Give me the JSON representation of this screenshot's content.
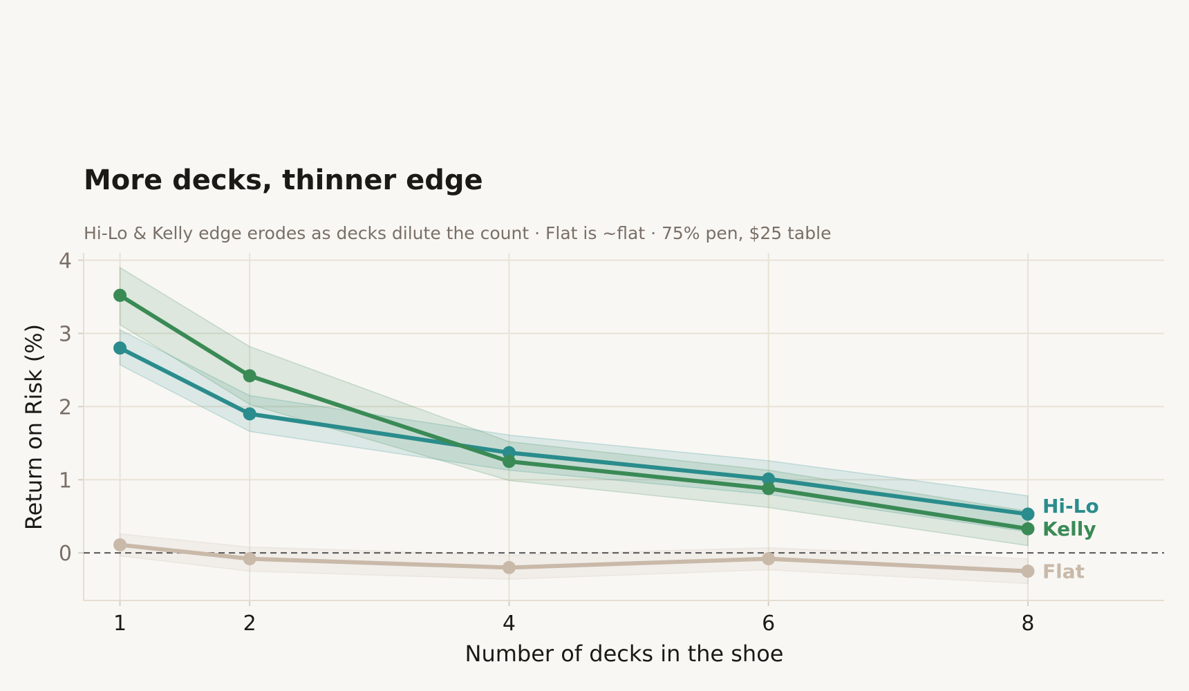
{
  "chart_data": {
    "type": "line",
    "title": "More decks, thinner edge",
    "subtitle": "Hi-Lo & Kelly edge erodes as decks dilute the count · Flat is ~flat · 75% pen, $25 table",
    "xlabel": "Number of decks in the shoe",
    "ylabel": "Return on Risk (%)",
    "x": [
      1,
      2,
      4,
      6,
      8
    ],
    "x_ticks": [
      "1",
      "2",
      "4",
      "6",
      "8"
    ],
    "y_ticks": [
      "0",
      "1",
      "2",
      "3",
      "4"
    ],
    "xlim": [
      0.72,
      9.05
    ],
    "ylim": [
      -0.65,
      4.1
    ],
    "grid": true,
    "reference_line": {
      "y": 0,
      "style": "dashed"
    },
    "series": [
      {
        "name": "Hi-Lo",
        "color": "#2a8c8c",
        "values": [
          2.8,
          1.9,
          1.37,
          1.01,
          0.53
        ],
        "lower": [
          2.57,
          1.66,
          1.13,
          0.8,
          0.29
        ],
        "upper": [
          3.05,
          2.15,
          1.61,
          1.26,
          0.78
        ]
      },
      {
        "name": "Kelly",
        "color": "#3a8a56",
        "values": [
          3.52,
          2.42,
          1.25,
          0.88,
          0.33
        ],
        "lower": [
          3.12,
          2.03,
          0.99,
          0.62,
          0.1
        ],
        "upper": [
          3.9,
          2.82,
          1.52,
          1.13,
          0.57
        ]
      },
      {
        "name": "Flat",
        "color": "#c9b9a9",
        "values": [
          0.11,
          -0.08,
          -0.2,
          -0.08,
          -0.25
        ],
        "lower": [
          -0.04,
          -0.25,
          -0.36,
          -0.23,
          -0.42
        ],
        "upper": [
          0.26,
          0.08,
          -0.03,
          0.07,
          -0.08
        ]
      }
    ]
  }
}
